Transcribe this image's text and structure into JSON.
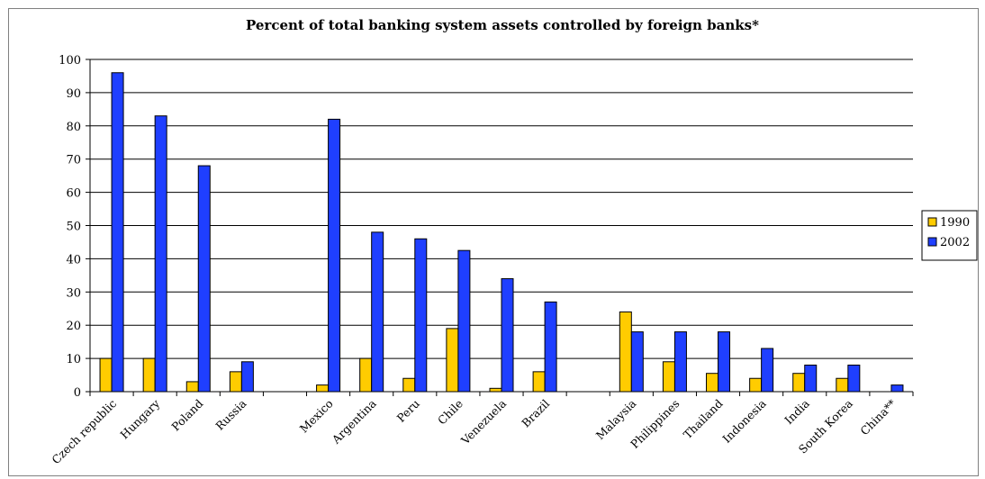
{
  "chart_data": {
    "type": "bar",
    "title": "Percent of total banking system assets controlled by foreign banks*",
    "xlabel": "",
    "ylabel": "",
    "ylim": [
      0,
      100
    ],
    "yticks": [
      0,
      10,
      20,
      30,
      40,
      50,
      60,
      70,
      80,
      90,
      100
    ],
    "grid": true,
    "legend_position": "right",
    "categories": [
      "Czech republic",
      "Hungary",
      "Poland",
      "Russia",
      "",
      "Mexico",
      "Argentina",
      "Peru",
      "Chile",
      "Venezuela",
      "Brazil",
      "",
      "Malaysia",
      "Philippines",
      "Thailand",
      "Indonesia",
      "India",
      "South Korea",
      "China**"
    ],
    "series": [
      {
        "name": "1990",
        "color": "#FFCC00",
        "values": [
          10,
          10,
          3,
          6,
          null,
          2,
          10,
          4,
          19,
          1,
          6,
          null,
          24,
          9,
          5.5,
          4,
          5.5,
          4,
          0
        ]
      },
      {
        "name": "2002",
        "color": "#1F3FFF",
        "values": [
          96,
          83,
          68,
          9,
          null,
          82,
          48,
          46,
          42.5,
          34,
          27,
          null,
          18,
          18,
          18,
          13,
          8,
          8,
          2
        ]
      }
    ]
  }
}
